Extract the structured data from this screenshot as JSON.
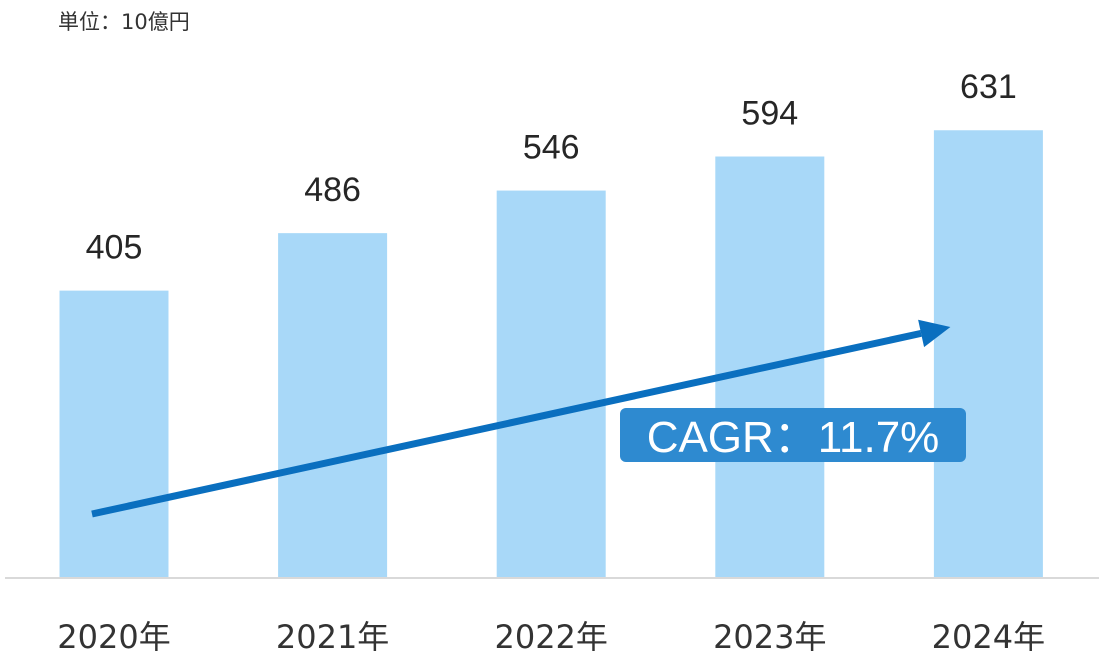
{
  "unit_label": "単位：10億円",
  "chart_data": {
    "type": "bar",
    "categories": [
      "2020年",
      "2021年",
      "2022年",
      "2023年",
      "2024年"
    ],
    "values": [
      405,
      486,
      546,
      594,
      631
    ],
    "data_labels": [
      "405",
      "486",
      "546",
      "594",
      "631"
    ],
    "title": "",
    "xlabel": "",
    "ylabel": "",
    "ylim": [
      0,
      730
    ],
    "grid": false,
    "legend": "none",
    "bar_color": "#a8d8f8",
    "axis_color": "#d9d9d9",
    "annotation": {
      "text": "CAGR：11.7%",
      "arrow_color": "#0a6fbf",
      "badge_color": "#2e8ad0",
      "from_category": "2020年",
      "to_category": "2024年"
    }
  }
}
